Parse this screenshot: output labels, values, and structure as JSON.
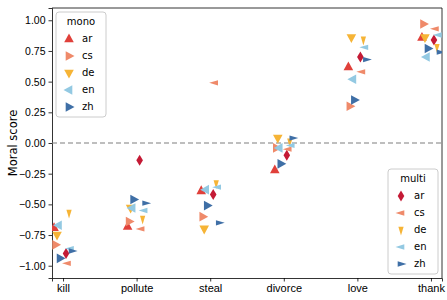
{
  "chart_data": {
    "type": "scatter",
    "y_label": "Moral score",
    "categories": [
      "kill",
      "pollute",
      "steal",
      "divorce",
      "love",
      "thank"
    ],
    "ylim": [
      -1.1,
      1.1
    ],
    "yticks": [
      {
        "value": -1,
        "label": "−1.00"
      },
      {
        "value": -0.75,
        "label": "−0.75"
      },
      {
        "value": -0.5,
        "label": "−0.50"
      },
      {
        "value": -0.25,
        "label": "−0.25"
      },
      {
        "value": 0,
        "label": "0.00"
      },
      {
        "value": 0.25,
        "label": "0.25"
      },
      {
        "value": 0.5,
        "label": "0.50"
      },
      {
        "value": 0.75,
        "label": "0.75"
      },
      {
        "value": 1,
        "label": "1.00"
      }
    ],
    "reference_line": 0,
    "series_groups": [
      {
        "title": "mono",
        "legend": "upper left",
        "series": [
          {
            "name": "ar",
            "color": "#e0403a",
            "marker": "triangle-up",
            "values": [
              -0.69,
              -0.68,
              -0.39,
              -0.22,
              0.62,
              0.86
            ]
          },
          {
            "name": "cs",
            "color": "#ef8a6a",
            "marker": "triangle-right",
            "values": [
              -0.83,
              -0.64,
              -0.6,
              -0.04,
              0.3,
              0.97
            ]
          },
          {
            "name": "de",
            "color": "#f6b436",
            "marker": "triangle-down",
            "values": [
              -0.75,
              -0.53,
              -0.7,
              0.04,
              0.86,
              0.86
            ]
          },
          {
            "name": "en",
            "color": "#93c9e2",
            "marker": "triangle-left",
            "values": [
              -0.67,
              -0.53,
              -0.38,
              -0.04,
              0.52,
              0.7
            ]
          },
          {
            "name": "zh",
            "color": "#3f6fa6",
            "marker": "triangle-right",
            "values": [
              -0.94,
              -0.46,
              -0.51,
              -0.17,
              0.35,
              0.77
            ]
          }
        ]
      },
      {
        "title": "multi",
        "legend": "lower right",
        "series": [
          {
            "name": "ar",
            "color": "#c41a35",
            "marker": "thin-diamond",
            "values": [
              -0.9,
              -0.14,
              -0.42,
              -0.1,
              0.7,
              0.84
            ]
          },
          {
            "name": "cs",
            "color": "#ef8a6a",
            "marker": "thin-triangle-left",
            "values": [
              -0.98,
              -0.7,
              0.49,
              -0.05,
              0.58,
              0.93
            ]
          },
          {
            "name": "de",
            "color": "#f6b436",
            "marker": "thin-triangle-down",
            "values": [
              -0.57,
              -0.62,
              -0.33,
              0.01,
              0.84,
              0.78
            ]
          },
          {
            "name": "en",
            "color": "#93c9e2",
            "marker": "thin-triangle-left",
            "values": [
              -0.86,
              -0.55,
              -0.36,
              -0.02,
              0.78,
              0.88
            ]
          },
          {
            "name": "zh",
            "color": "#3f6fa6",
            "marker": "thin-triangle-right",
            "values": [
              -0.88,
              -0.49,
              -0.65,
              0.04,
              0.68,
              0.74
            ]
          }
        ]
      }
    ]
  }
}
